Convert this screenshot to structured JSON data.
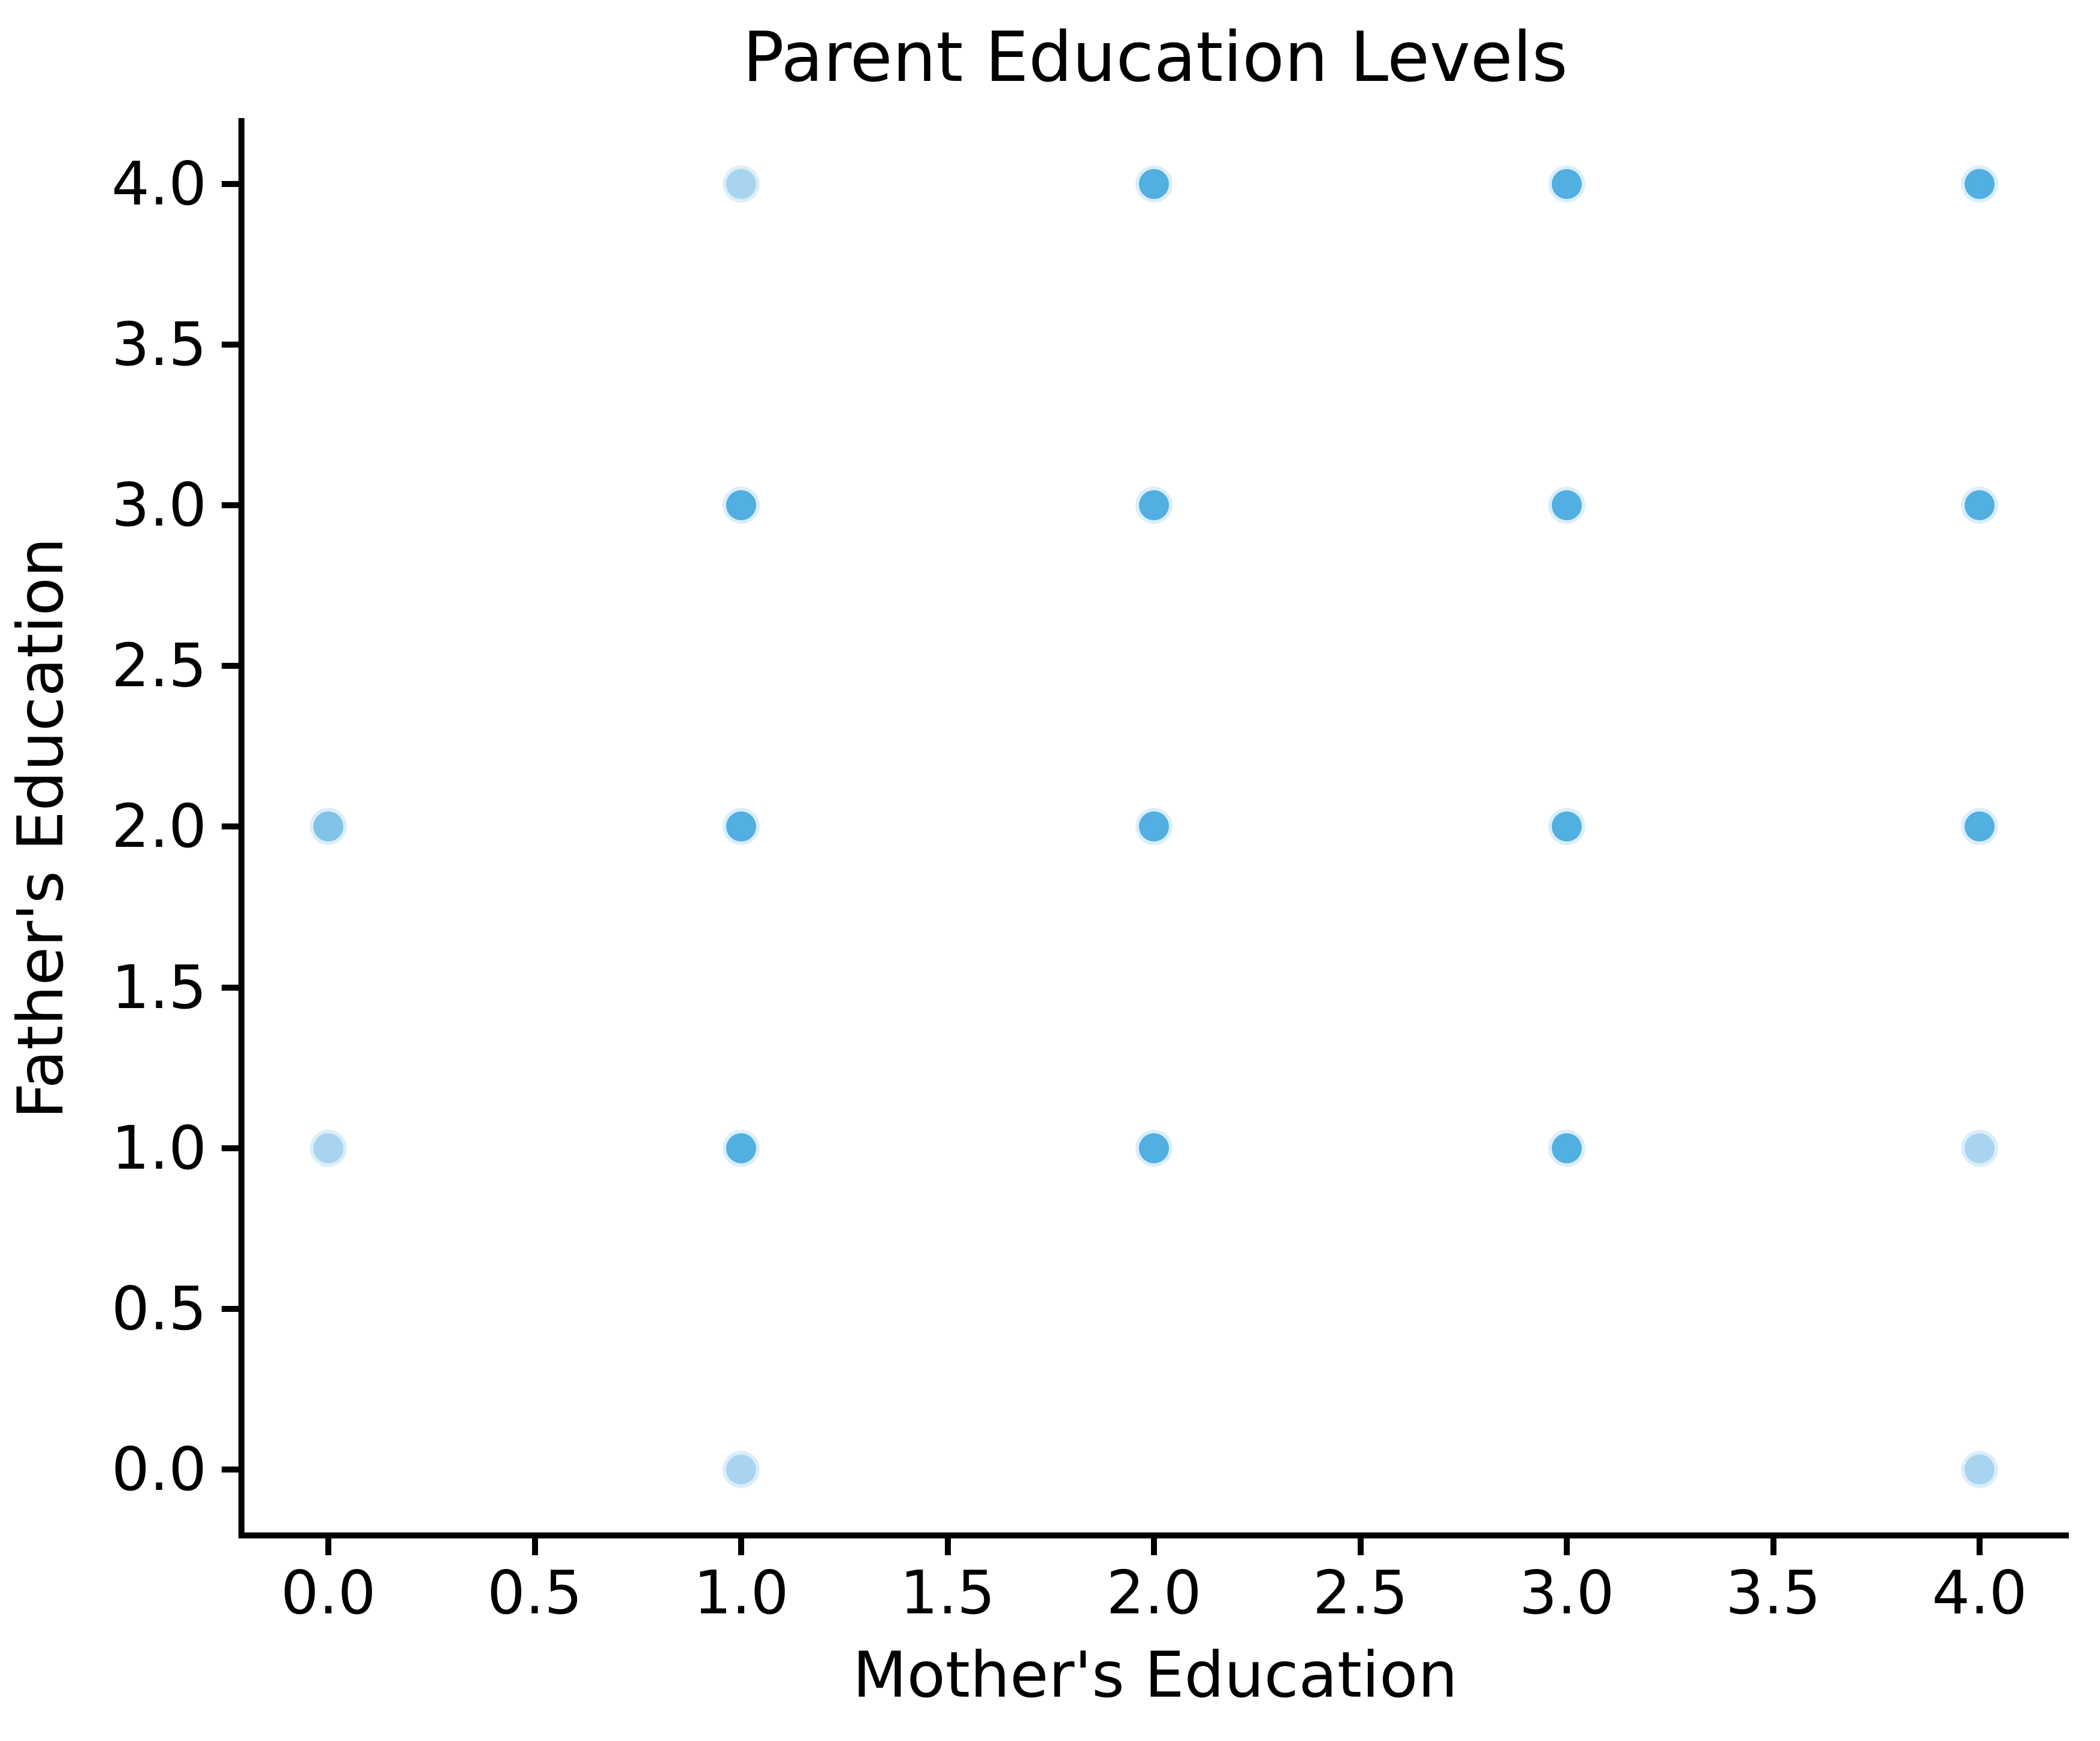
{
  "title": "Parent Education Levels",
  "x_axis": {
    "label": "Mother's Education",
    "tick_labels": [
      "0.0",
      "0.5",
      "1.0",
      "1.5",
      "2.0",
      "2.5",
      "3.0",
      "3.5",
      "4.0"
    ],
    "tick_values": [
      0,
      0.5,
      1,
      1.5,
      2,
      2.5,
      3,
      3.5,
      4
    ]
  },
  "y_axis": {
    "label": "Father's Education",
    "tick_labels": [
      "0.0",
      "0.5",
      "1.0",
      "1.5",
      "2.0",
      "2.5",
      "3.0",
      "3.5",
      "4.0"
    ],
    "tick_values": [
      0,
      0.5,
      1,
      1.5,
      2,
      2.5,
      3,
      3.5,
      4
    ]
  },
  "colors": {
    "background": "#ffffff",
    "axis": "#000000",
    "text": "#000000",
    "point_light": "#A9D4EF",
    "point_medium": "#80C3E7",
    "point_dark": "#51AFE1"
  },
  "chart_data": {
    "type": "scatter",
    "title": "Parent Education Levels",
    "xlabel": "Mother's Education",
    "ylabel": "Father's Education",
    "xlim": [
      -0.2,
      4.2
    ],
    "ylim": [
      -0.2,
      4.2
    ],
    "x_ticks": [
      0,
      0.5,
      1,
      1.5,
      2,
      2.5,
      3,
      3.5,
      4
    ],
    "y_ticks": [
      0,
      0.5,
      1,
      1.5,
      2,
      2.5,
      3,
      3.5,
      4
    ],
    "grid": false,
    "legend": false,
    "points": [
      {
        "x": 1,
        "y": 4,
        "overlap": "light"
      },
      {
        "x": 2,
        "y": 4,
        "overlap": "dark"
      },
      {
        "x": 3,
        "y": 4,
        "overlap": "dark"
      },
      {
        "x": 4,
        "y": 4,
        "overlap": "dark"
      },
      {
        "x": 1,
        "y": 3,
        "overlap": "dark"
      },
      {
        "x": 2,
        "y": 3,
        "overlap": "dark"
      },
      {
        "x": 3,
        "y": 3,
        "overlap": "dark"
      },
      {
        "x": 4,
        "y": 3,
        "overlap": "dark"
      },
      {
        "x": 0,
        "y": 2,
        "overlap": "medium"
      },
      {
        "x": 1,
        "y": 2,
        "overlap": "dark"
      },
      {
        "x": 2,
        "y": 2,
        "overlap": "dark"
      },
      {
        "x": 3,
        "y": 2,
        "overlap": "dark"
      },
      {
        "x": 4,
        "y": 2,
        "overlap": "dark"
      },
      {
        "x": 0,
        "y": 1,
        "overlap": "light"
      },
      {
        "x": 1,
        "y": 1,
        "overlap": "dark"
      },
      {
        "x": 2,
        "y": 1,
        "overlap": "dark"
      },
      {
        "x": 3,
        "y": 1,
        "overlap": "dark"
      },
      {
        "x": 4,
        "y": 1,
        "overlap": "light"
      },
      {
        "x": 1,
        "y": 0,
        "overlap": "light"
      },
      {
        "x": 4,
        "y": 0,
        "overlap": "light"
      }
    ]
  }
}
